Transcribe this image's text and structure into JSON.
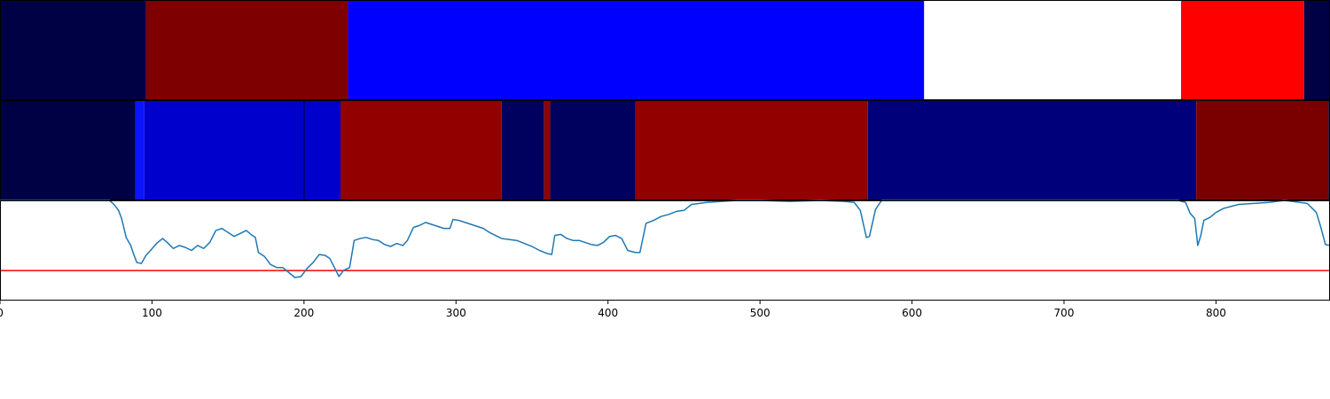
{
  "chart_data": [
    {
      "type": "heatmap",
      "xlim": [
        0,
        875
      ],
      "segments": [
        {
          "start": 0,
          "end": 96,
          "color": "#000044"
        },
        {
          "start": 96,
          "end": 229,
          "color": "#7f0000"
        },
        {
          "start": 229,
          "end": 608,
          "color": "#0000ff"
        },
        {
          "start": 608,
          "end": 777,
          "color": "#ffffff"
        },
        {
          "start": 777,
          "end": 858,
          "color": "#ff0000"
        },
        {
          "start": 858,
          "end": 875,
          "color": "#000044"
        }
      ]
    },
    {
      "type": "heatmap",
      "xlim": [
        0,
        875
      ],
      "segments": [
        {
          "start": 0,
          "end": 89,
          "color": "#000044"
        },
        {
          "start": 89,
          "end": 95,
          "color": "#0a14ff"
        },
        {
          "start": 95,
          "end": 200,
          "color": "#0000cc"
        },
        {
          "start": 200,
          "end": 224,
          "color": "#0000cc"
        },
        {
          "start": 224,
          "end": 330,
          "color": "#920000"
        },
        {
          "start": 330,
          "end": 358,
          "color": "#00005e"
        },
        {
          "start": 358,
          "end": 362,
          "color": "#920000"
        },
        {
          "start": 362,
          "end": 418,
          "color": "#00005e"
        },
        {
          "start": 418,
          "end": 571,
          "color": "#920000"
        },
        {
          "start": 571,
          "end": 787,
          "color": "#00007a"
        },
        {
          "start": 787,
          "end": 874,
          "color": "#7a0000"
        },
        {
          "start": 874,
          "end": 875,
          "color": "#000044"
        }
      ],
      "dividers": [
        200
      ]
    },
    {
      "type": "line",
      "xlim": [
        0,
        875
      ],
      "ylim": [
        0,
        1
      ],
      "x_ticks": [
        0,
        100,
        200,
        300,
        400,
        500,
        600,
        700,
        800
      ],
      "threshold": 0.3,
      "threshold_color": "#ff0000",
      "line_color": "#1f77b4",
      "points": [
        [
          0,
          1.0
        ],
        [
          72,
          1.0
        ],
        [
          75,
          0.96
        ],
        [
          78,
          0.9
        ],
        [
          80,
          0.82
        ],
        [
          83,
          0.63
        ],
        [
          86,
          0.55
        ],
        [
          88,
          0.46
        ],
        [
          90,
          0.38
        ],
        [
          93,
          0.37
        ],
        [
          96,
          0.45
        ],
        [
          99,
          0.5
        ],
        [
          103,
          0.57
        ],
        [
          107,
          0.62
        ],
        [
          110,
          0.58
        ],
        [
          114,
          0.52
        ],
        [
          118,
          0.55
        ],
        [
          122,
          0.53
        ],
        [
          126,
          0.5
        ],
        [
          130,
          0.55
        ],
        [
          134,
          0.52
        ],
        [
          138,
          0.58
        ],
        [
          142,
          0.7
        ],
        [
          146,
          0.72
        ],
        [
          150,
          0.68
        ],
        [
          154,
          0.64
        ],
        [
          158,
          0.67
        ],
        [
          162,
          0.7
        ],
        [
          166,
          0.65
        ],
        [
          168,
          0.63
        ],
        [
          170,
          0.48
        ],
        [
          174,
          0.44
        ],
        [
          178,
          0.36
        ],
        [
          182,
          0.33
        ],
        [
          186,
          0.33
        ],
        [
          190,
          0.28
        ],
        [
          194,
          0.23
        ],
        [
          198,
          0.24
        ],
        [
          202,
          0.32
        ],
        [
          206,
          0.38
        ],
        [
          210,
          0.46
        ],
        [
          214,
          0.45
        ],
        [
          217,
          0.42
        ],
        [
          220,
          0.33
        ],
        [
          223,
          0.24
        ],
        [
          226,
          0.3
        ],
        [
          230,
          0.33
        ],
        [
          233,
          0.6
        ],
        [
          237,
          0.62
        ],
        [
          241,
          0.63
        ],
        [
          245,
          0.61
        ],
        [
          249,
          0.6
        ],
        [
          253,
          0.56
        ],
        [
          257,
          0.54
        ],
        [
          261,
          0.57
        ],
        [
          265,
          0.55
        ],
        [
          268,
          0.6
        ],
        [
          272,
          0.73
        ],
        [
          276,
          0.75
        ],
        [
          280,
          0.78
        ],
        [
          284,
          0.76
        ],
        [
          288,
          0.74
        ],
        [
          292,
          0.72
        ],
        [
          296,
          0.72
        ],
        [
          298,
          0.81
        ],
        [
          302,
          0.8
        ],
        [
          306,
          0.78
        ],
        [
          310,
          0.76
        ],
        [
          314,
          0.74
        ],
        [
          318,
          0.72
        ],
        [
          322,
          0.68
        ],
        [
          326,
          0.65
        ],
        [
          330,
          0.62
        ],
        [
          335,
          0.61
        ],
        [
          340,
          0.6
        ],
        [
          345,
          0.57
        ],
        [
          350,
          0.54
        ],
        [
          355,
          0.5
        ],
        [
          360,
          0.47
        ],
        [
          363,
          0.46
        ],
        [
          365,
          0.65
        ],
        [
          369,
          0.66
        ],
        [
          373,
          0.62
        ],
        [
          377,
          0.6
        ],
        [
          381,
          0.6
        ],
        [
          385,
          0.58
        ],
        [
          389,
          0.56
        ],
        [
          393,
          0.55
        ],
        [
          397,
          0.58
        ],
        [
          401,
          0.64
        ],
        [
          405,
          0.65
        ],
        [
          409,
          0.62
        ],
        [
          413,
          0.5
        ],
        [
          418,
          0.48
        ],
        [
          421,
          0.48
        ],
        [
          425,
          0.77
        ],
        [
          430,
          0.8
        ],
        [
          435,
          0.84
        ],
        [
          440,
          0.86
        ],
        [
          445,
          0.89
        ],
        [
          450,
          0.9
        ],
        [
          455,
          0.96
        ],
        [
          460,
          0.97
        ],
        [
          465,
          0.98
        ],
        [
          475,
          0.99
        ],
        [
          485,
          1.0
        ],
        [
          500,
          1.0
        ],
        [
          520,
          0.99
        ],
        [
          540,
          1.0
        ],
        [
          555,
          0.99
        ],
        [
          562,
          0.98
        ],
        [
          566,
          0.9
        ],
        [
          570,
          0.63
        ],
        [
          572,
          0.64
        ],
        [
          576,
          0.91
        ],
        [
          580,
          1.0
        ],
        [
          600,
          1.0
        ],
        [
          700,
          1.0
        ],
        [
          775,
          1.0
        ],
        [
          780,
          0.98
        ],
        [
          783,
          0.87
        ],
        [
          786,
          0.82
        ],
        [
          788,
          0.55
        ],
        [
          790,
          0.65
        ],
        [
          792,
          0.8
        ],
        [
          796,
          0.83
        ],
        [
          800,
          0.88
        ],
        [
          805,
          0.92
        ],
        [
          810,
          0.94
        ],
        [
          815,
          0.96
        ],
        [
          825,
          0.97
        ],
        [
          835,
          0.98
        ],
        [
          845,
          1.0
        ],
        [
          850,
          0.99
        ],
        [
          855,
          0.98
        ],
        [
          860,
          0.97
        ],
        [
          866,
          0.88
        ],
        [
          869,
          0.73
        ],
        [
          872,
          0.56
        ],
        [
          875,
          0.55
        ]
      ]
    }
  ]
}
